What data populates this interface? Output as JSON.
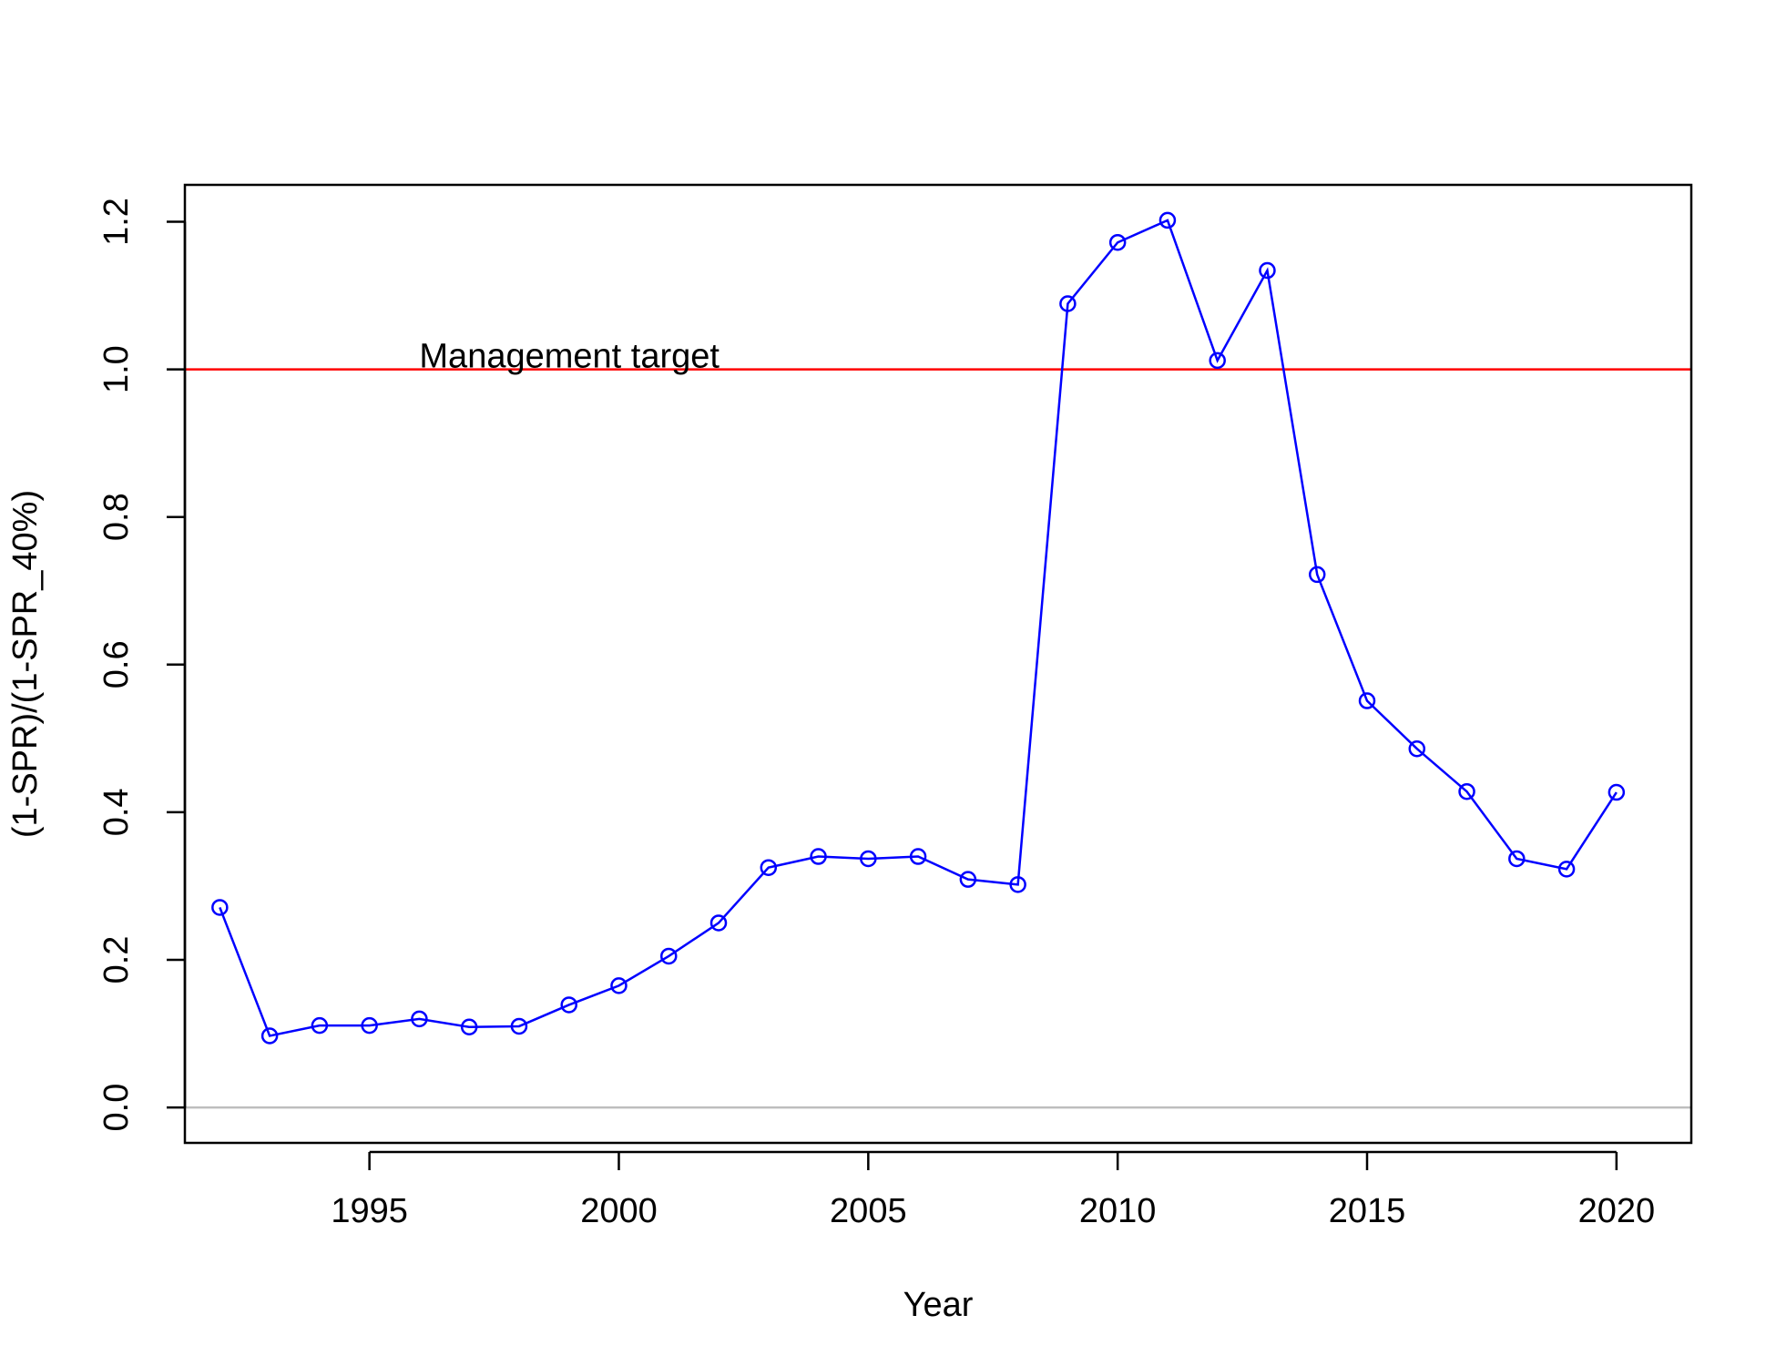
{
  "chart_data": {
    "type": "line",
    "title": "",
    "xlabel": "Year",
    "ylabel": "(1-SPR)/(1-SPR_40%)",
    "xlim": [
      1991.3,
      2021.5
    ],
    "ylim": [
      -0.048,
      1.25
    ],
    "x_ticks": [
      1995,
      2000,
      2005,
      2010,
      2015,
      2020
    ],
    "y_ticks": [
      0.0,
      0.2,
      0.4,
      0.6,
      0.8,
      1.0,
      1.2
    ],
    "x_tick_labels": [
      "1995",
      "2000",
      "2005",
      "2010",
      "2015",
      "2020"
    ],
    "y_tick_labels": [
      "0.0",
      "0.2",
      "0.4",
      "0.6",
      "0.8",
      "1.0",
      "1.2"
    ],
    "grid": false,
    "reference_lines": [
      {
        "y": 1.0,
        "color": "#ff0000",
        "label": "Management target",
        "label_x": 1996
      },
      {
        "y": 0.0,
        "color": "#bebebe",
        "label": ""
      }
    ],
    "series": [
      {
        "color": "#0000ff",
        "marker": "open-circle",
        "x": [
          1992,
          1993,
          1994,
          1995,
          1996,
          1997,
          1998,
          1999,
          2000,
          2001,
          2002,
          2003,
          2004,
          2005,
          2006,
          2007,
          2008,
          2009,
          2010,
          2011,
          2012,
          2013,
          2014,
          2015,
          2016,
          2017,
          2018,
          2019,
          2020
        ],
        "y": [
          0.271,
          0.097,
          0.111,
          0.111,
          0.12,
          0.109,
          0.11,
          0.139,
          0.165,
          0.205,
          0.25,
          0.325,
          0.34,
          0.337,
          0.34,
          0.309,
          0.302,
          1.089,
          1.172,
          1.202,
          1.012,
          1.134,
          0.722,
          0.551,
          0.486,
          0.428,
          0.337,
          0.323,
          0.427
        ]
      }
    ]
  }
}
